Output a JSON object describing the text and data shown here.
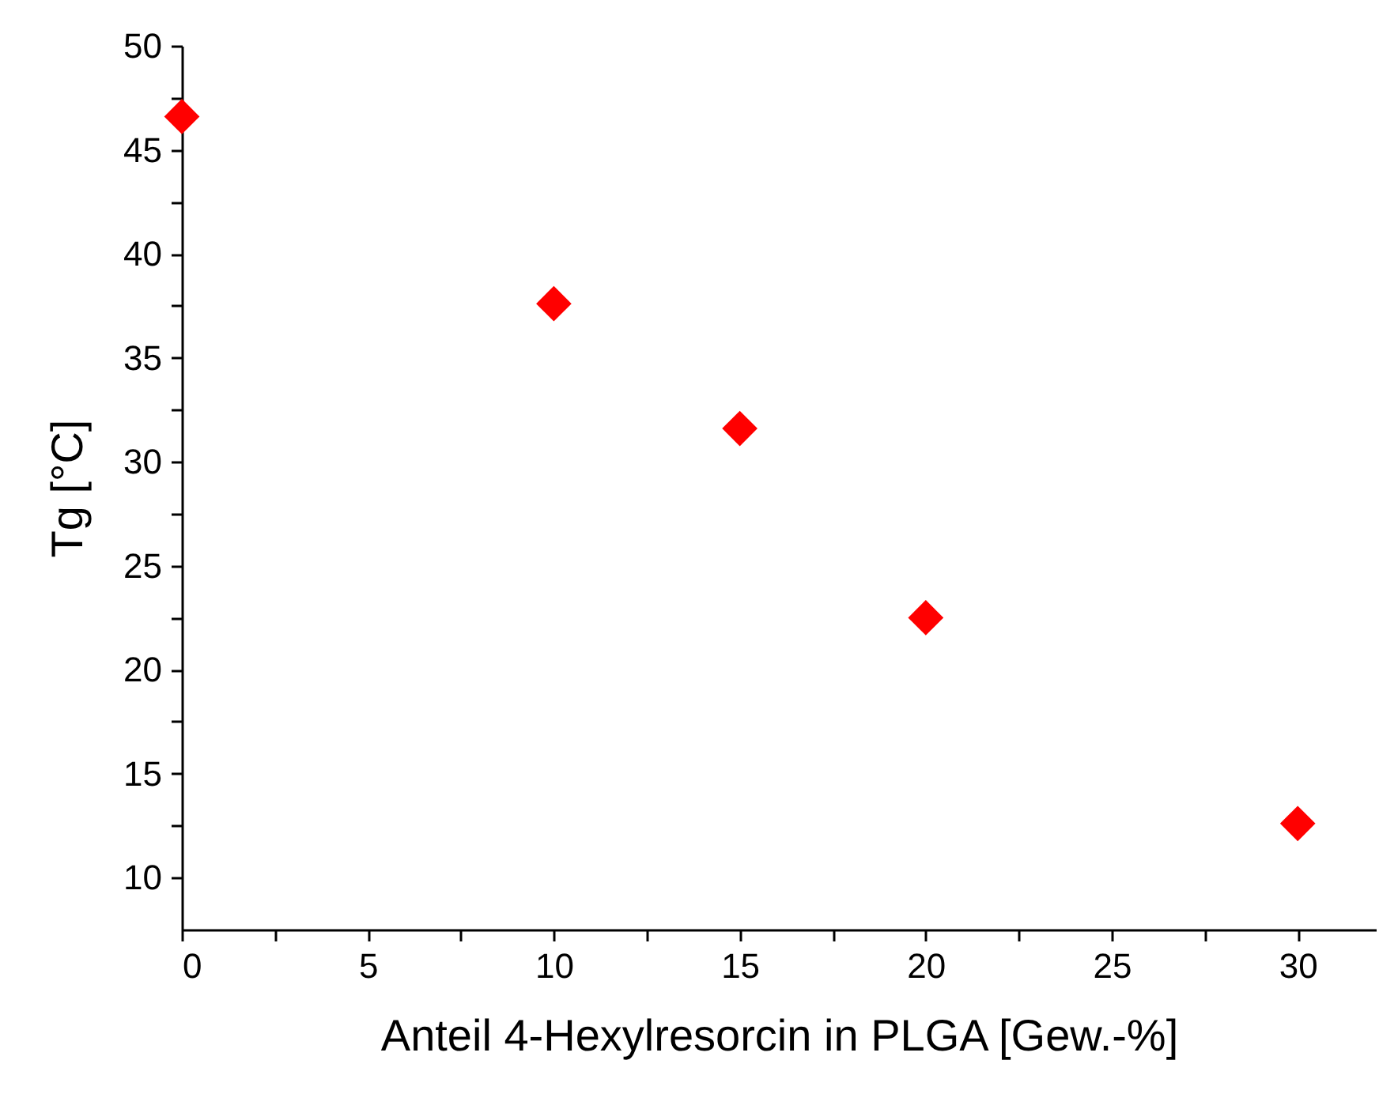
{
  "chart_data": {
    "type": "scatter",
    "xlabel": "Anteil 4-Hexylresorcin in PLGA [Gew.-%]",
    "ylabel": "Tg [°C]",
    "x": [
      0,
      10,
      15,
      20,
      30
    ],
    "series": [
      {
        "color": "#ff0000",
        "values": [
          46.6,
          37.6,
          31.6,
          22.5,
          12.6
        ]
      }
    ],
    "marker": "diamond",
    "grid": false,
    "legend": false,
    "xlim": [
      0,
      32.1
    ],
    "ylim": [
      7.5,
      50
    ],
    "xticks": [
      0,
      {
        "value": 2.5,
        "label": null
      },
      5,
      {
        "value": 7.5,
        "label": null
      },
      10,
      {
        "value": 12.5,
        "label": null
      },
      15,
      {
        "value": 17.5,
        "label": null
      },
      20,
      {
        "value": 22.5,
        "label": null
      },
      25,
      {
        "value": 27.5,
        "label": null
      },
      30
    ],
    "yticks": [
      10,
      {
        "value": 12.5,
        "label": null
      },
      15,
      {
        "value": 17.5,
        "label": null
      },
      20,
      {
        "value": 22.5,
        "label": null
      },
      25,
      {
        "value": 27.5,
        "label": null
      },
      30,
      {
        "value": 32.5,
        "label": null
      },
      35,
      {
        "value": 37.5,
        "label": null
      },
      40,
      {
        "value": 42.5,
        "label": null
      },
      45,
      {
        "value": 47.5,
        "label": null
      },
      50
    ]
  }
}
